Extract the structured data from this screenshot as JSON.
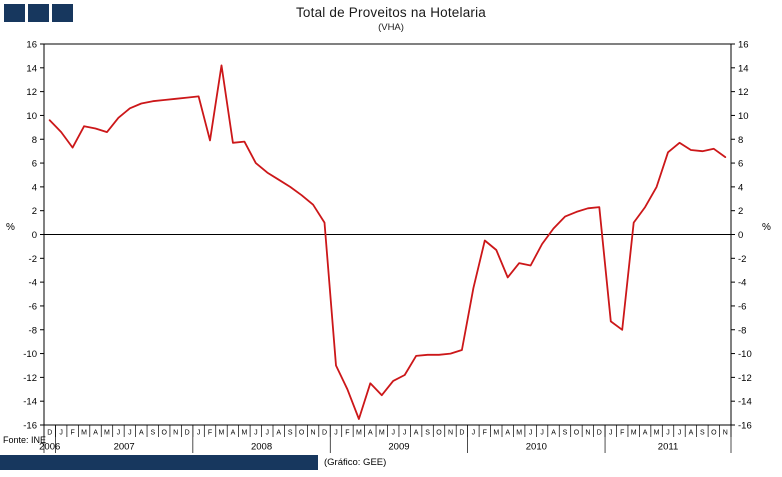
{
  "header": {
    "title": "Total de Proveitos na Hotelaria",
    "subtitle": "(VHA)"
  },
  "footer": {
    "source": "Fonte: INE",
    "credit": "(Gráfico: GEE)"
  },
  "colors": {
    "line": "#cc1719",
    "navy": "#17375e",
    "axis": "#000000"
  },
  "chart_data": {
    "type": "line",
    "title": "Total de Proveitos na Hotelaria",
    "subtitle": "(VHA)",
    "ylabel_left": "%",
    "ylabel_right": "%",
    "ylim": [
      -16,
      16
    ],
    "ytick_step": 2,
    "grid": false,
    "legend": "none",
    "x_months": [
      "D",
      "J",
      "F",
      "M",
      "A",
      "M",
      "J",
      "J",
      "A",
      "S",
      "O",
      "N",
      "D",
      "J",
      "F",
      "M",
      "A",
      "M",
      "J",
      "J",
      "A",
      "S",
      "O",
      "N",
      "D",
      "J",
      "F",
      "M",
      "A",
      "M",
      "J",
      "J",
      "A",
      "S",
      "O",
      "N",
      "D",
      "J",
      "F",
      "M",
      "A",
      "M",
      "J",
      "J",
      "A",
      "S",
      "O",
      "N",
      "D",
      "J",
      "F",
      "M",
      "A",
      "M",
      "J",
      "J",
      "A",
      "S",
      "O",
      "N"
    ],
    "years": [
      {
        "label": "2006",
        "start": 0,
        "span": 1
      },
      {
        "label": "2007",
        "start": 1,
        "span": 12
      },
      {
        "label": "2008",
        "start": 13,
        "span": 12
      },
      {
        "label": "2009",
        "start": 25,
        "span": 12
      },
      {
        "label": "2010",
        "start": 37,
        "span": 12
      },
      {
        "label": "2011",
        "start": 49,
        "span": 11
      }
    ],
    "values": [
      9.6,
      8.6,
      7.3,
      9.1,
      8.9,
      8.6,
      9.8,
      10.6,
      11.0,
      11.2,
      11.3,
      11.4,
      11.5,
      11.6,
      7.9,
      14.2,
      7.7,
      7.8,
      6.0,
      5.2,
      4.6,
      4.0,
      3.3,
      2.5,
      1.0,
      -11.0,
      -13.0,
      -15.5,
      -12.5,
      -13.5,
      -12.3,
      -11.8,
      -10.2,
      -10.1,
      -10.1,
      -10.0,
      -9.7,
      -4.5,
      -0.5,
      -1.3,
      -3.6,
      -2.4,
      -2.6,
      -0.8,
      0.5,
      1.5,
      1.9,
      2.2,
      2.3,
      -7.3,
      -8.0,
      1.0,
      2.3,
      4.0,
      6.9,
      7.7,
      7.1,
      7.0,
      7.2,
      6.5
    ]
  }
}
